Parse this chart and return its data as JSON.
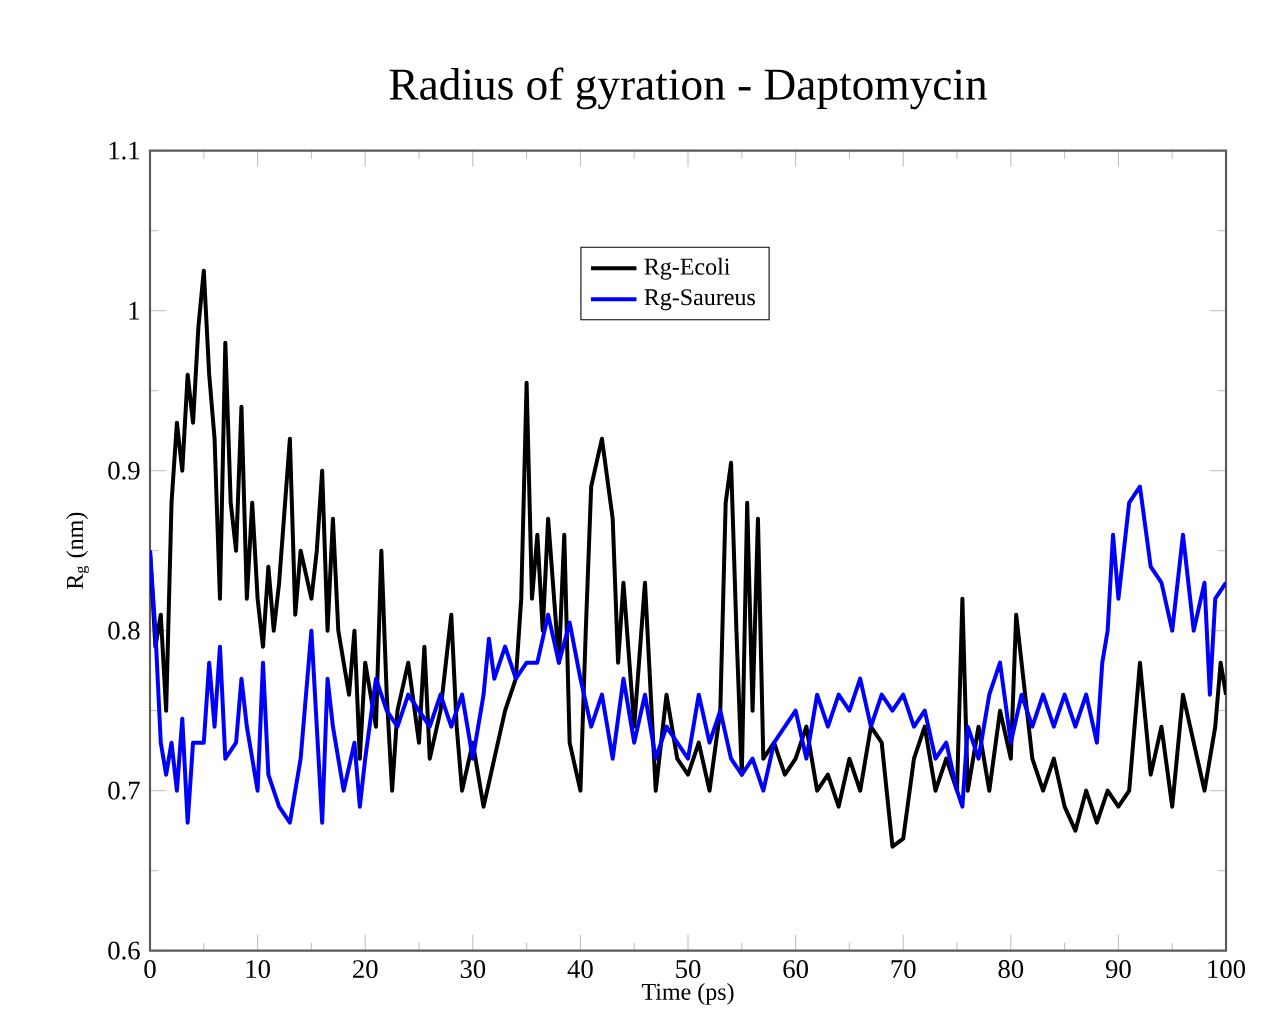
{
  "chart_data": {
    "type": "line",
    "title": "Radius of gyration - Daptomycin",
    "xlabel": "Time (ps)",
    "ylabel": "R$_{g}$ (nm)",
    "xlim": [
      0,
      100
    ],
    "ylim": [
      0.6,
      1.1
    ],
    "xticks": [
      0,
      10,
      20,
      30,
      40,
      50,
      60,
      70,
      80,
      90,
      100
    ],
    "yticks": [
      0.6,
      0.7,
      0.8,
      0.9,
      1,
      1.1
    ],
    "grid": false,
    "legend": "top",
    "marker": "none",
    "line_style": "solid",
    "series": [
      {
        "name": "Rg-Ecoli",
        "color": "#000000",
        "x": [
          0,
          0.5,
          1,
          1.5,
          2,
          2.5,
          3,
          3.5,
          4,
          4.5,
          5,
          5.5,
          6,
          6.5,
          7,
          7.5,
          8,
          8.5,
          9,
          9.5,
          10,
          10.5,
          11,
          11.5,
          12,
          13,
          13.5,
          14,
          15,
          15.5,
          16,
          16.5,
          17,
          17.5,
          18,
          18.5,
          19,
          19.5,
          20,
          21,
          21.5,
          22,
          22.5,
          23,
          24,
          25,
          25.5,
          26,
          27,
          28,
          28.5,
          29,
          30,
          31,
          32,
          33,
          34,
          34.5,
          35,
          35.5,
          36,
          36.5,
          37,
          38,
          38.5,
          39,
          40,
          40.5,
          41,
          42,
          43,
          43.5,
          44,
          45,
          46,
          47,
          48,
          49,
          50,
          51,
          52,
          53,
          53.5,
          54,
          54.5,
          55,
          55.5,
          56,
          56.5,
          57,
          58,
          59,
          60,
          61,
          62,
          63,
          64,
          65,
          66,
          67,
          68,
          69,
          70,
          71,
          72,
          73,
          74,
          75,
          75.5,
          76,
          77,
          78,
          79,
          80,
          80.5,
          81,
          82,
          83,
          84,
          85,
          86,
          87,
          88,
          89,
          90,
          91,
          92,
          93,
          94,
          95,
          96,
          97,
          98,
          99,
          99.5,
          100
        ],
        "values": [
          0.85,
          0.79,
          0.81,
          0.75,
          0.88,
          0.93,
          0.9,
          0.96,
          0.93,
          0.99,
          1.025,
          0.96,
          0.92,
          0.82,
          0.98,
          0.88,
          0.85,
          0.94,
          0.82,
          0.88,
          0.82,
          0.79,
          0.84,
          0.8,
          0.83,
          0.92,
          0.81,
          0.85,
          0.82,
          0.85,
          0.9,
          0.8,
          0.87,
          0.8,
          0.78,
          0.76,
          0.8,
          0.72,
          0.78,
          0.74,
          0.85,
          0.76,
          0.7,
          0.75,
          0.78,
          0.73,
          0.79,
          0.72,
          0.75,
          0.81,
          0.74,
          0.7,
          0.73,
          0.69,
          0.72,
          0.75,
          0.77,
          0.82,
          0.955,
          0.82,
          0.86,
          0.8,
          0.87,
          0.78,
          0.86,
          0.73,
          0.7,
          0.8,
          0.89,
          0.92,
          0.87,
          0.78,
          0.83,
          0.74,
          0.83,
          0.7,
          0.76,
          0.72,
          0.71,
          0.73,
          0.7,
          0.75,
          0.88,
          0.905,
          0.8,
          0.71,
          0.88,
          0.75,
          0.87,
          0.72,
          0.73,
          0.71,
          0.72,
          0.74,
          0.7,
          0.71,
          0.69,
          0.72,
          0.7,
          0.74,
          0.73,
          0.665,
          0.67,
          0.72,
          0.74,
          0.7,
          0.72,
          0.7,
          0.82,
          0.7,
          0.74,
          0.7,
          0.75,
          0.72,
          0.81,
          0.78,
          0.72,
          0.7,
          0.72,
          0.69,
          0.675,
          0.7,
          0.68,
          0.7,
          0.69,
          0.7,
          0.78,
          0.71,
          0.74,
          0.69,
          0.76,
          0.73,
          0.7,
          0.74,
          0.78,
          0.76
        ]
      },
      {
        "name": "Rg-Saureus",
        "color": "#0000ff",
        "x": [
          0,
          0.5,
          1,
          1.5,
          2,
          2.5,
          3,
          3.5,
          4,
          5,
          5.5,
          6,
          6.5,
          7,
          8,
          8.5,
          9,
          10,
          10.5,
          11,
          12,
          13,
          14,
          15,
          15.5,
          16,
          16.5,
          17,
          18,
          19,
          19.5,
          20,
          21,
          22,
          23,
          24,
          25,
          26,
          27,
          28,
          29,
          30,
          31,
          31.5,
          32,
          33,
          34,
          35,
          36,
          37,
          38,
          39,
          40,
          41,
          42,
          43,
          44,
          45,
          46,
          47,
          48,
          49,
          50,
          51,
          52,
          53,
          54,
          55,
          56,
          57,
          58,
          59,
          60,
          61,
          62,
          63,
          64,
          65,
          66,
          67,
          68,
          69,
          70,
          71,
          72,
          73,
          74,
          75,
          75.5,
          76,
          77,
          78,
          79,
          80,
          81,
          82,
          83,
          84,
          85,
          86,
          87,
          88,
          88.5,
          89,
          89.5,
          90,
          91,
          92,
          93,
          94,
          95,
          96,
          97,
          98,
          98.5,
          99,
          100
        ],
        "values": [
          0.85,
          0.8,
          0.73,
          0.71,
          0.73,
          0.7,
          0.745,
          0.68,
          0.73,
          0.73,
          0.78,
          0.74,
          0.79,
          0.72,
          0.73,
          0.77,
          0.74,
          0.7,
          0.78,
          0.71,
          0.69,
          0.68,
          0.72,
          0.8,
          0.74,
          0.68,
          0.77,
          0.74,
          0.7,
          0.73,
          0.69,
          0.72,
          0.77,
          0.75,
          0.74,
          0.76,
          0.75,
          0.74,
          0.76,
          0.74,
          0.76,
          0.72,
          0.76,
          0.795,
          0.77,
          0.79,
          0.77,
          0.78,
          0.78,
          0.81,
          0.78,
          0.805,
          0.77,
          0.74,
          0.76,
          0.72,
          0.77,
          0.73,
          0.76,
          0.72,
          0.74,
          0.73,
          0.72,
          0.76,
          0.73,
          0.75,
          0.72,
          0.71,
          0.72,
          0.7,
          0.73,
          0.74,
          0.75,
          0.72,
          0.76,
          0.74,
          0.76,
          0.75,
          0.77,
          0.74,
          0.76,
          0.75,
          0.76,
          0.74,
          0.75,
          0.72,
          0.73,
          0.7,
          0.69,
          0.74,
          0.72,
          0.76,
          0.78,
          0.73,
          0.76,
          0.74,
          0.76,
          0.74,
          0.76,
          0.74,
          0.76,
          0.73,
          0.78,
          0.8,
          0.86,
          0.82,
          0.88,
          0.89,
          0.84,
          0.83,
          0.8,
          0.86,
          0.8,
          0.83,
          0.76,
          0.82,
          0.83
        ]
      }
    ]
  }
}
